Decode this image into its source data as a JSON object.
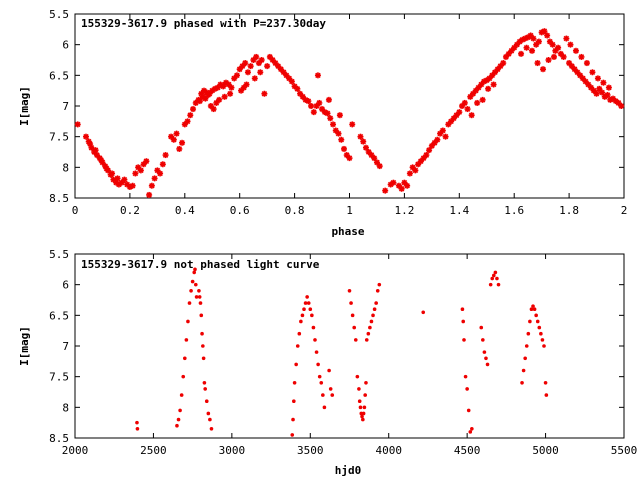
{
  "colors": {
    "points": "#ee0000",
    "frame": "#000000"
  },
  "chart_data": [
    {
      "type": "scatter",
      "title": "155329-3617.9 phased with P=237.30day",
      "xlabel": "phase",
      "ylabel": "I[mag]",
      "xlim": [
        0,
        2
      ],
      "ylim": [
        8.5,
        5.5
      ],
      "y_inverted": true,
      "x_ticks": [
        "0",
        "0.2",
        "0.4",
        "0.6",
        "0.8",
        "1",
        "1.2",
        "1.4",
        "1.6",
        "1.8",
        "2"
      ],
      "y_ticks": [
        "5.5",
        "6",
        "6.5",
        "7",
        "7.5",
        "8",
        "8.5"
      ],
      "marker": "plus-star",
      "points": [
        [
          0.01,
          7.3
        ],
        [
          0.04,
          7.5
        ],
        [
          0.05,
          7.58
        ],
        [
          0.06,
          7.68
        ],
        [
          0.07,
          7.75
        ],
        [
          0.08,
          7.8
        ],
        [
          0.09,
          7.85
        ],
        [
          0.1,
          7.92
        ],
        [
          0.11,
          7.98
        ],
        [
          0.12,
          8.05
        ],
        [
          0.13,
          8.12
        ],
        [
          0.14,
          8.2
        ],
        [
          0.15,
          8.25
        ],
        [
          0.16,
          8.28
        ],
        [
          0.17,
          8.25
        ],
        [
          0.18,
          8.2
        ],
        [
          0.19,
          8.28
        ],
        [
          0.2,
          8.32
        ],
        [
          0.21,
          8.3
        ],
        [
          0.055,
          7.62
        ],
        [
          0.075,
          7.72
        ],
        [
          0.095,
          7.88
        ],
        [
          0.115,
          8.02
        ],
        [
          0.135,
          8.1
        ],
        [
          0.155,
          8.18
        ],
        [
          0.22,
          8.1
        ],
        [
          0.23,
          8.0
        ],
        [
          0.24,
          8.05
        ],
        [
          0.25,
          7.95
        ],
        [
          0.26,
          7.9
        ],
        [
          0.27,
          8.45
        ],
        [
          0.28,
          8.3
        ],
        [
          0.29,
          8.18
        ],
        [
          0.3,
          8.05
        ],
        [
          0.31,
          8.1
        ],
        [
          0.32,
          7.95
        ],
        [
          0.33,
          7.8
        ],
        [
          0.35,
          7.5
        ],
        [
          0.36,
          7.55
        ],
        [
          0.37,
          7.45
        ],
        [
          0.38,
          7.7
        ],
        [
          0.39,
          7.6
        ],
        [
          0.4,
          7.3
        ],
        [
          0.41,
          7.25
        ],
        [
          0.42,
          7.15
        ],
        [
          0.43,
          7.05
        ],
        [
          0.44,
          6.95
        ],
        [
          0.45,
          6.9
        ],
        [
          0.46,
          6.8
        ],
        [
          0.47,
          6.75
        ],
        [
          0.48,
          6.78
        ],
        [
          0.49,
          6.8
        ],
        [
          0.5,
          6.75
        ],
        [
          0.51,
          6.72
        ],
        [
          0.52,
          6.7
        ],
        [
          0.53,
          6.65
        ],
        [
          0.54,
          6.68
        ],
        [
          0.55,
          6.62
        ],
        [
          0.56,
          6.65
        ],
        [
          0.57,
          6.7
        ],
        [
          0.58,
          6.55
        ],
        [
          0.59,
          6.5
        ],
        [
          0.455,
          6.92
        ],
        [
          0.465,
          6.85
        ],
        [
          0.475,
          6.88
        ],
        [
          0.485,
          6.82
        ],
        [
          0.495,
          7.0
        ],
        [
          0.505,
          7.05
        ],
        [
          0.515,
          6.95
        ],
        [
          0.525,
          6.9
        ],
        [
          0.545,
          6.85
        ],
        [
          0.565,
          6.8
        ],
        [
          0.6,
          6.4
        ],
        [
          0.61,
          6.35
        ],
        [
          0.62,
          6.3
        ],
        [
          0.63,
          6.45
        ],
        [
          0.64,
          6.35
        ],
        [
          0.65,
          6.25
        ],
        [
          0.66,
          6.2
        ],
        [
          0.67,
          6.3
        ],
        [
          0.68,
          6.25
        ],
        [
          0.69,
          6.8
        ],
        [
          0.7,
          6.35
        ],
        [
          0.71,
          6.2
        ],
        [
          0.72,
          6.25
        ],
        [
          0.73,
          6.3
        ],
        [
          0.74,
          6.35
        ],
        [
          0.75,
          6.4
        ],
        [
          0.76,
          6.45
        ],
        [
          0.77,
          6.5
        ],
        [
          0.78,
          6.55
        ],
        [
          0.79,
          6.6
        ],
        [
          0.605,
          6.75
        ],
        [
          0.615,
          6.7
        ],
        [
          0.625,
          6.65
        ],
        [
          0.655,
          6.55
        ],
        [
          0.675,
          6.45
        ],
        [
          0.8,
          6.68
        ],
        [
          0.81,
          6.72
        ],
        [
          0.82,
          6.8
        ],
        [
          0.83,
          6.85
        ],
        [
          0.84,
          6.9
        ],
        [
          0.85,
          6.92
        ],
        [
          0.86,
          7.0
        ],
        [
          0.87,
          7.1
        ],
        [
          0.88,
          7.0
        ],
        [
          0.89,
          6.95
        ],
        [
          0.9,
          7.05
        ],
        [
          0.91,
          7.1
        ],
        [
          0.92,
          7.12
        ],
        [
          0.93,
          7.2
        ],
        [
          0.94,
          7.3
        ],
        [
          0.95,
          7.4
        ],
        [
          0.96,
          7.45
        ],
        [
          0.97,
          7.55
        ],
        [
          0.98,
          7.7
        ],
        [
          0.99,
          7.8
        ],
        [
          1.0,
          7.85
        ],
        [
          0.885,
          6.5
        ],
        [
          0.925,
          6.9
        ],
        [
          0.965,
          7.15
        ],
        [
          1.01,
          7.3
        ],
        [
          1.04,
          7.5
        ],
        [
          1.05,
          7.58
        ],
        [
          1.06,
          7.68
        ],
        [
          1.07,
          7.75
        ],
        [
          1.08,
          7.8
        ],
        [
          1.09,
          7.85
        ],
        [
          1.1,
          7.92
        ],
        [
          1.11,
          7.98
        ],
        [
          1.13,
          8.38
        ],
        [
          1.15,
          8.28
        ],
        [
          1.16,
          8.25
        ],
        [
          1.18,
          8.3
        ],
        [
          1.19,
          8.35
        ],
        [
          1.2,
          8.25
        ],
        [
          1.21,
          8.3
        ],
        [
          1.22,
          8.1
        ],
        [
          1.23,
          8.0
        ],
        [
          1.24,
          8.05
        ],
        [
          1.25,
          7.95
        ],
        [
          1.26,
          7.9
        ],
        [
          1.27,
          7.85
        ],
        [
          1.28,
          7.8
        ],
        [
          1.29,
          7.72
        ],
        [
          1.3,
          7.65
        ],
        [
          1.31,
          7.6
        ],
        [
          1.32,
          7.55
        ],
        [
          1.33,
          7.45
        ],
        [
          1.34,
          7.4
        ],
        [
          1.35,
          7.5
        ],
        [
          1.36,
          7.3
        ],
        [
          1.37,
          7.25
        ],
        [
          1.38,
          7.2
        ],
        [
          1.39,
          7.15
        ],
        [
          1.4,
          7.1
        ],
        [
          1.41,
          7.0
        ],
        [
          1.42,
          6.95
        ],
        [
          1.43,
          7.05
        ],
        [
          1.44,
          6.85
        ],
        [
          1.45,
          6.8
        ],
        [
          1.46,
          6.75
        ],
        [
          1.47,
          6.7
        ],
        [
          1.48,
          6.65
        ],
        [
          1.49,
          6.6
        ],
        [
          1.5,
          6.58
        ],
        [
          1.51,
          6.55
        ],
        [
          1.52,
          6.5
        ],
        [
          1.53,
          6.45
        ],
        [
          1.54,
          6.4
        ],
        [
          1.55,
          6.35
        ],
        [
          1.56,
          6.3
        ],
        [
          1.57,
          6.2
        ],
        [
          1.58,
          6.15
        ],
        [
          1.59,
          6.1
        ],
        [
          1.445,
          7.15
        ],
        [
          1.465,
          6.95
        ],
        [
          1.485,
          6.9
        ],
        [
          1.505,
          6.72
        ],
        [
          1.525,
          6.65
        ],
        [
          1.6,
          6.05
        ],
        [
          1.61,
          6.0
        ],
        [
          1.62,
          5.95
        ],
        [
          1.63,
          5.92
        ],
        [
          1.64,
          5.9
        ],
        [
          1.65,
          5.88
        ],
        [
          1.66,
          5.85
        ],
        [
          1.67,
          5.9
        ],
        [
          1.68,
          6.0
        ],
        [
          1.69,
          5.95
        ],
        [
          1.7,
          5.8
        ],
        [
          1.71,
          5.78
        ],
        [
          1.72,
          5.85
        ],
        [
          1.73,
          5.95
        ],
        [
          1.74,
          6.0
        ],
        [
          1.75,
          6.1
        ],
        [
          1.76,
          6.05
        ],
        [
          1.77,
          6.15
        ],
        [
          1.78,
          6.2
        ],
        [
          1.79,
          5.9
        ],
        [
          1.625,
          6.15
        ],
        [
          1.645,
          6.05
        ],
        [
          1.665,
          6.1
        ],
        [
          1.685,
          6.3
        ],
        [
          1.705,
          6.4
        ],
        [
          1.725,
          6.25
        ],
        [
          1.745,
          6.2
        ],
        [
          1.8,
          6.3
        ],
        [
          1.81,
          6.35
        ],
        [
          1.82,
          6.4
        ],
        [
          1.83,
          6.45
        ],
        [
          1.84,
          6.5
        ],
        [
          1.85,
          6.55
        ],
        [
          1.86,
          6.6
        ],
        [
          1.87,
          6.65
        ],
        [
          1.88,
          6.7
        ],
        [
          1.89,
          6.75
        ],
        [
          1.9,
          6.8
        ],
        [
          1.91,
          6.72
        ],
        [
          1.92,
          6.78
        ],
        [
          1.93,
          6.85
        ],
        [
          1.94,
          6.82
        ],
        [
          1.95,
          6.9
        ],
        [
          1.96,
          6.88
        ],
        [
          1.97,
          6.92
        ],
        [
          1.98,
          6.95
        ],
        [
          1.99,
          7.0
        ],
        [
          1.805,
          6.0
        ],
        [
          1.825,
          6.1
        ],
        [
          1.845,
          6.2
        ],
        [
          1.865,
          6.3
        ],
        [
          1.885,
          6.45
        ],
        [
          1.905,
          6.55
        ],
        [
          1.925,
          6.62
        ],
        [
          1.945,
          6.7
        ]
      ]
    },
    {
      "type": "scatter",
      "title": "155329-3617.9 not phased light curve",
      "xlabel": "hjd0",
      "ylabel": "I[mag]",
      "xlim": [
        2000,
        5500
      ],
      "ylim": [
        8.5,
        5.5
      ],
      "y_inverted": true,
      "x_ticks": [
        "2000",
        "2500",
        "3000",
        "3500",
        "4000",
        "4500",
        "5000",
        "5500"
      ],
      "y_ticks": [
        "5.5",
        "6",
        "6.5",
        "7",
        "7.5",
        "8",
        "8.5"
      ],
      "marker": "dot",
      "points": [
        [
          2395,
          8.25
        ],
        [
          2398,
          8.35
        ],
        [
          2650,
          8.3
        ],
        [
          2660,
          8.2
        ],
        [
          2670,
          8.05
        ],
        [
          2680,
          7.8
        ],
        [
          2690,
          7.5
        ],
        [
          2700,
          7.2
        ],
        [
          2710,
          6.9
        ],
        [
          2720,
          6.6
        ],
        [
          2730,
          6.3
        ],
        [
          2740,
          6.1
        ],
        [
          2750,
          5.95
        ],
        [
          2760,
          5.8
        ],
        [
          2765,
          5.75
        ],
        [
          2770,
          6.0
        ],
        [
          2775,
          6.2
        ],
        [
          2790,
          6.1
        ],
        [
          2795,
          6.2
        ],
        [
          2800,
          6.3
        ],
        [
          2805,
          6.5
        ],
        [
          2810,
          6.8
        ],
        [
          2815,
          7.0
        ],
        [
          2820,
          7.2
        ],
        [
          2825,
          7.6
        ],
        [
          2830,
          7.7
        ],
        [
          2840,
          7.9
        ],
        [
          2850,
          8.1
        ],
        [
          2860,
          8.2
        ],
        [
          2870,
          8.35
        ],
        [
          3385,
          8.45
        ],
        [
          3390,
          8.2
        ],
        [
          3395,
          7.9
        ],
        [
          3400,
          7.6
        ],
        [
          3410,
          7.3
        ],
        [
          3420,
          7.0
        ],
        [
          3430,
          6.8
        ],
        [
          3440,
          6.6
        ],
        [
          3450,
          6.5
        ],
        [
          3460,
          6.4
        ],
        [
          3470,
          6.3
        ],
        [
          3480,
          6.2
        ],
        [
          3490,
          6.3
        ],
        [
          3500,
          6.4
        ],
        [
          3510,
          6.5
        ],
        [
          3520,
          6.7
        ],
        [
          3530,
          6.9
        ],
        [
          3540,
          7.1
        ],
        [
          3550,
          7.3
        ],
        [
          3560,
          7.5
        ],
        [
          3570,
          7.6
        ],
        [
          3580,
          7.8
        ],
        [
          3590,
          8.0
        ],
        [
          3620,
          7.4
        ],
        [
          3630,
          7.7
        ],
        [
          3640,
          7.8
        ],
        [
          3750,
          6.1
        ],
        [
          3760,
          6.3
        ],
        [
          3770,
          6.5
        ],
        [
          3780,
          6.7
        ],
        [
          3790,
          6.9
        ],
        [
          3800,
          7.5
        ],
        [
          3810,
          7.7
        ],
        [
          3815,
          7.9
        ],
        [
          3820,
          8.0
        ],
        [
          3825,
          8.1
        ],
        [
          3830,
          8.15
        ],
        [
          3835,
          8.2
        ],
        [
          3840,
          8.1
        ],
        [
          3845,
          8.0
        ],
        [
          3850,
          7.8
        ],
        [
          3855,
          7.6
        ],
        [
          3860,
          6.9
        ],
        [
          3870,
          6.8
        ],
        [
          3880,
          6.7
        ],
        [
          3890,
          6.6
        ],
        [
          3900,
          6.5
        ],
        [
          3910,
          6.4
        ],
        [
          3920,
          6.3
        ],
        [
          3930,
          6.1
        ],
        [
          3940,
          6.0
        ],
        [
          4220,
          6.45
        ],
        [
          4470,
          6.4
        ],
        [
          4475,
          6.6
        ],
        [
          4480,
          6.9
        ],
        [
          4490,
          7.5
        ],
        [
          4500,
          7.7
        ],
        [
          4510,
          8.05
        ],
        [
          4520,
          8.4
        ],
        [
          4530,
          8.35
        ],
        [
          4590,
          6.7
        ],
        [
          4600,
          6.9
        ],
        [
          4610,
          7.1
        ],
        [
          4620,
          7.2
        ],
        [
          4630,
          7.3
        ],
        [
          4650,
          6.0
        ],
        [
          4660,
          5.9
        ],
        [
          4670,
          5.85
        ],
        [
          4680,
          5.8
        ],
        [
          4690,
          5.9
        ],
        [
          4700,
          6.0
        ],
        [
          4850,
          7.6
        ],
        [
          4860,
          7.4
        ],
        [
          4870,
          7.2
        ],
        [
          4880,
          7.0
        ],
        [
          4890,
          6.8
        ],
        [
          4900,
          6.6
        ],
        [
          4910,
          6.4
        ],
        [
          4920,
          6.35
        ],
        [
          4930,
          6.4
        ],
        [
          4940,
          6.5
        ],
        [
          4950,
          6.6
        ],
        [
          4960,
          6.7
        ],
        [
          4970,
          6.8
        ],
        [
          4980,
          6.9
        ],
        [
          4990,
          7.0
        ],
        [
          5000,
          7.6
        ],
        [
          5005,
          7.8
        ]
      ]
    }
  ]
}
